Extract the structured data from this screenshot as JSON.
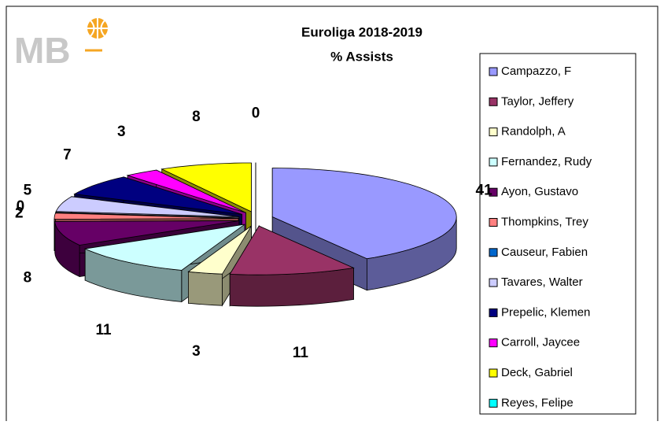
{
  "logo": "MB",
  "chart_data": {
    "type": "pie",
    "title": "Euroliga 2018-2019",
    "subtitle": "% Assists",
    "categories": [
      "Campazzo, F",
      "Taylor, Jeffery",
      "Randolph, A",
      "Fernandez, Rudy",
      "Ayon, Gustavo",
      "Thompkins, Trey",
      "Causeur, Fabien",
      "Tavares, Walter",
      "Prepelic, Klemen",
      "Carroll, Jaycee",
      "Deck, Gabriel",
      "Reyes, Felipe"
    ],
    "values": [
      41,
      11,
      3,
      11,
      8,
      2,
      0,
      5,
      7,
      3,
      8,
      0
    ],
    "colors": [
      "#9999ff",
      "#993366",
      "#ffffcc",
      "#ccffff",
      "#660066",
      "#ff8080",
      "#0066cc",
      "#ccccff",
      "#000080",
      "#ff00ff",
      "#ffff00",
      "#00ffff"
    ],
    "legend": "right"
  }
}
